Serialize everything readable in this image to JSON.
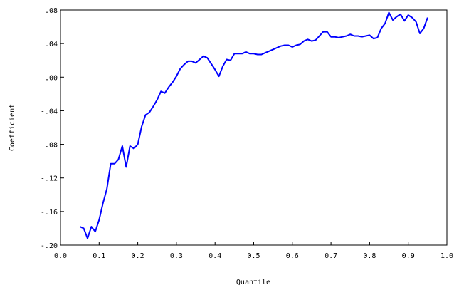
{
  "chart_data": {
    "type": "line",
    "title": "",
    "xlabel": "Quantile",
    "ylabel": "Coefficient",
    "xlim": [
      0.0,
      1.0
    ],
    "ylim": [
      -0.2,
      0.08
    ],
    "x_ticks": [
      0.0,
      0.1,
      0.2,
      0.3,
      0.4,
      0.5,
      0.6,
      0.7,
      0.8,
      0.9,
      1.0
    ],
    "x_tick_labels": [
      "0.0",
      "0.1",
      "0.2",
      "0.3",
      "0.4",
      "0.5",
      "0.6",
      "0.7",
      "0.8",
      "0.9",
      "1.0"
    ],
    "y_ticks": [
      -0.2,
      -0.16,
      -0.12,
      -0.08,
      -0.04,
      0.0,
      0.04,
      0.08
    ],
    "y_tick_labels": [
      "-.20",
      "-.16",
      "-.12",
      "-.08",
      "-.04",
      ".00",
      ".04",
      ".08"
    ],
    "grid": false,
    "line_color": "#0000ff",
    "series": [
      {
        "x": [
          0.05,
          0.06,
          0.07,
          0.08,
          0.09,
          0.1,
          0.11,
          0.12,
          0.13,
          0.14,
          0.15,
          0.16,
          0.17,
          0.18,
          0.19,
          0.2,
          0.21,
          0.22,
          0.23,
          0.24,
          0.25,
          0.26,
          0.27,
          0.28,
          0.29,
          0.3,
          0.31,
          0.32,
          0.33,
          0.34,
          0.35,
          0.36,
          0.37,
          0.38,
          0.39,
          0.4,
          0.41,
          0.42,
          0.43,
          0.44,
          0.45,
          0.46,
          0.47,
          0.48,
          0.49,
          0.5,
          0.51,
          0.52,
          0.53,
          0.54,
          0.55,
          0.56,
          0.57,
          0.58,
          0.59,
          0.6,
          0.61,
          0.62,
          0.63,
          0.64,
          0.65,
          0.66,
          0.67,
          0.68,
          0.69,
          0.7,
          0.71,
          0.72,
          0.73,
          0.74,
          0.75,
          0.76,
          0.77,
          0.78,
          0.79,
          0.8,
          0.81,
          0.82,
          0.83,
          0.84,
          0.85,
          0.86,
          0.87,
          0.88,
          0.89,
          0.9,
          0.91,
          0.92,
          0.93,
          0.94,
          0.95
        ],
        "values": [
          -0.178,
          -0.18,
          -0.192,
          -0.178,
          -0.184,
          -0.17,
          -0.15,
          -0.133,
          -0.103,
          -0.103,
          -0.098,
          -0.082,
          -0.107,
          -0.082,
          -0.085,
          -0.08,
          -0.059,
          -0.045,
          -0.042,
          -0.035,
          -0.027,
          -0.017,
          -0.019,
          -0.012,
          -0.006,
          0.001,
          0.01,
          0.015,
          0.019,
          0.019,
          0.017,
          0.021,
          0.025,
          0.023,
          0.016,
          0.009,
          0.001,
          0.013,
          0.021,
          0.02,
          0.028,
          0.028,
          0.028,
          0.03,
          0.028,
          0.028,
          0.027,
          0.027,
          0.029,
          0.031,
          0.033,
          0.035,
          0.037,
          0.038,
          0.038,
          0.036,
          0.038,
          0.039,
          0.043,
          0.045,
          0.043,
          0.044,
          0.049,
          0.054,
          0.054,
          0.048,
          0.048,
          0.047,
          0.048,
          0.049,
          0.051,
          0.049,
          0.049,
          0.048,
          0.049,
          0.05,
          0.046,
          0.047,
          0.058,
          0.064,
          0.077,
          0.068,
          0.072,
          0.075,
          0.067,
          0.074,
          0.071,
          0.066,
          0.052,
          0.058,
          0.071
        ]
      }
    ]
  }
}
